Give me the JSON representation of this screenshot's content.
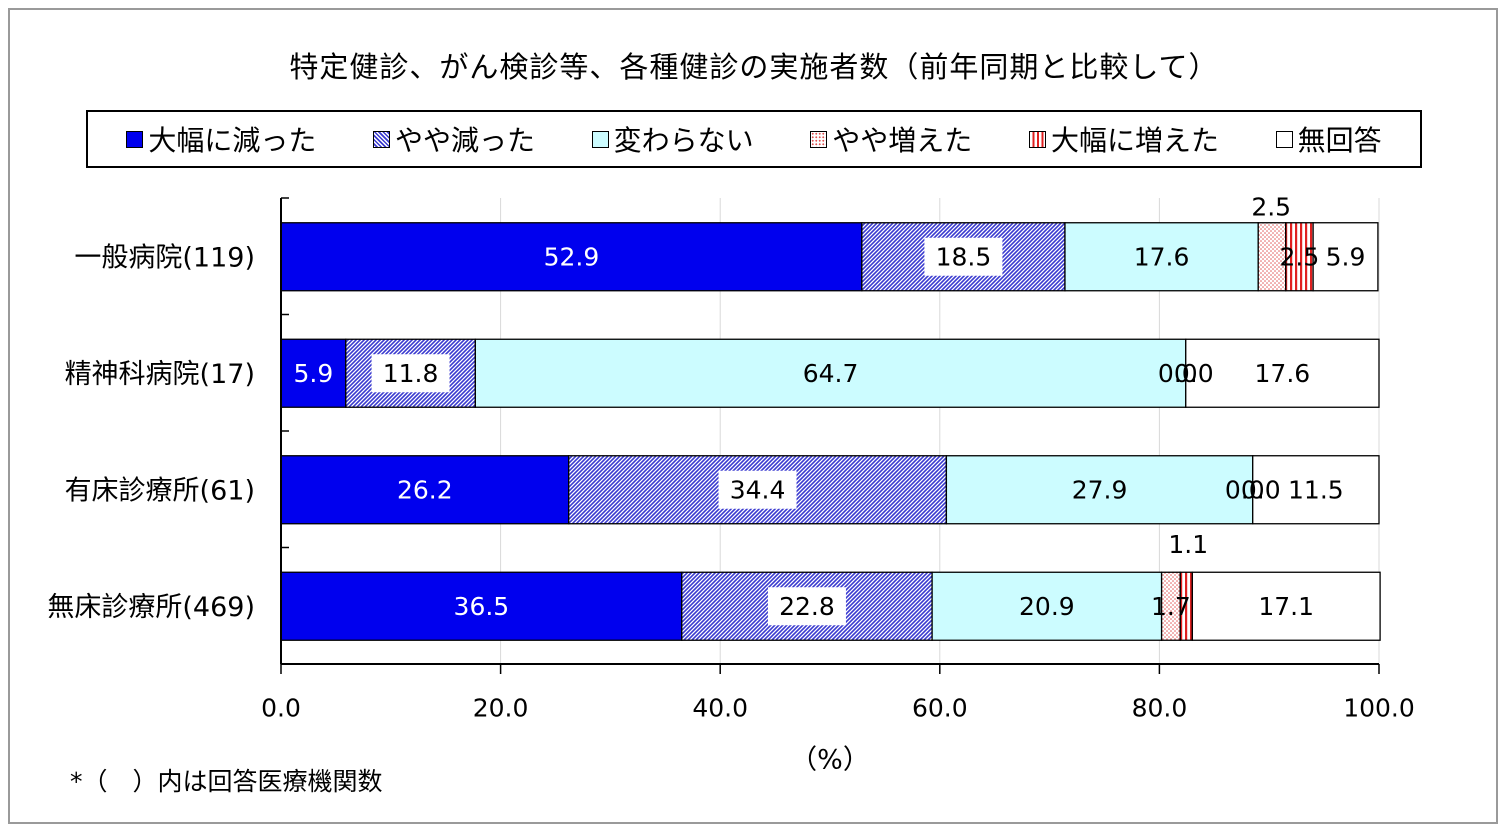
{
  "chart_data": {
    "type": "bar",
    "orientation": "horizontal",
    "stacked": true,
    "title": "特定健診、がん検診等、各種健診の実施者数（前年同期と比較して）",
    "categories": [
      "一般病院(119)",
      "精神科病院(17)",
      "有床診療所(61)",
      "無床診療所(469)"
    ],
    "series": [
      {
        "name": "大幅に減った",
        "values": [
          52.9,
          5.9,
          26.2,
          36.5
        ],
        "labels": [
          "52.9",
          "5.9",
          "26.2",
          "36.5"
        ],
        "color": "#0000ee",
        "pattern": "solid"
      },
      {
        "name": "やや減った",
        "values": [
          18.5,
          11.8,
          34.4,
          22.8
        ],
        "labels": [
          "18.5",
          "11.8",
          "34.4",
          "22.8"
        ],
        "color": "#3a3ad0",
        "pattern": "diagonal"
      },
      {
        "name": "変わらない",
        "values": [
          17.6,
          64.7,
          27.9,
          20.9
        ],
        "labels": [
          "17.6",
          "64.7",
          "27.9",
          "20.9"
        ],
        "color": "#ccfcff",
        "pattern": "solid"
      },
      {
        "name": "やや増えた",
        "values": [
          2.5,
          0.0,
          0.0,
          1.7
        ],
        "labels": [
          "2.5",
          "0.0",
          "0.0",
          "1.7"
        ],
        "color": "#e05050",
        "pattern": "dots"
      },
      {
        "name": "大幅に増えた",
        "values": [
          2.5,
          0.0,
          0.0,
          1.1
        ],
        "labels": [
          "2.5",
          "0.0",
          "0.0",
          "1.1"
        ],
        "color": "#e02020",
        "pattern": "vertical"
      },
      {
        "name": "無回答",
        "values": [
          5.9,
          17.6,
          11.5,
          17.1
        ],
        "labels": [
          "5.9",
          "17.6",
          "11.5",
          "17.1"
        ],
        "color": "#ffffff",
        "pattern": "solid"
      }
    ],
    "xlim": [
      0,
      100
    ],
    "xticks": [
      "0.0",
      "20.0",
      "40.0",
      "60.0",
      "80.0",
      "100.0"
    ],
    "xlabel": "（%）",
    "grid": true,
    "legend_position": "top"
  },
  "footnote": "*（　）内は回答医療機関数"
}
